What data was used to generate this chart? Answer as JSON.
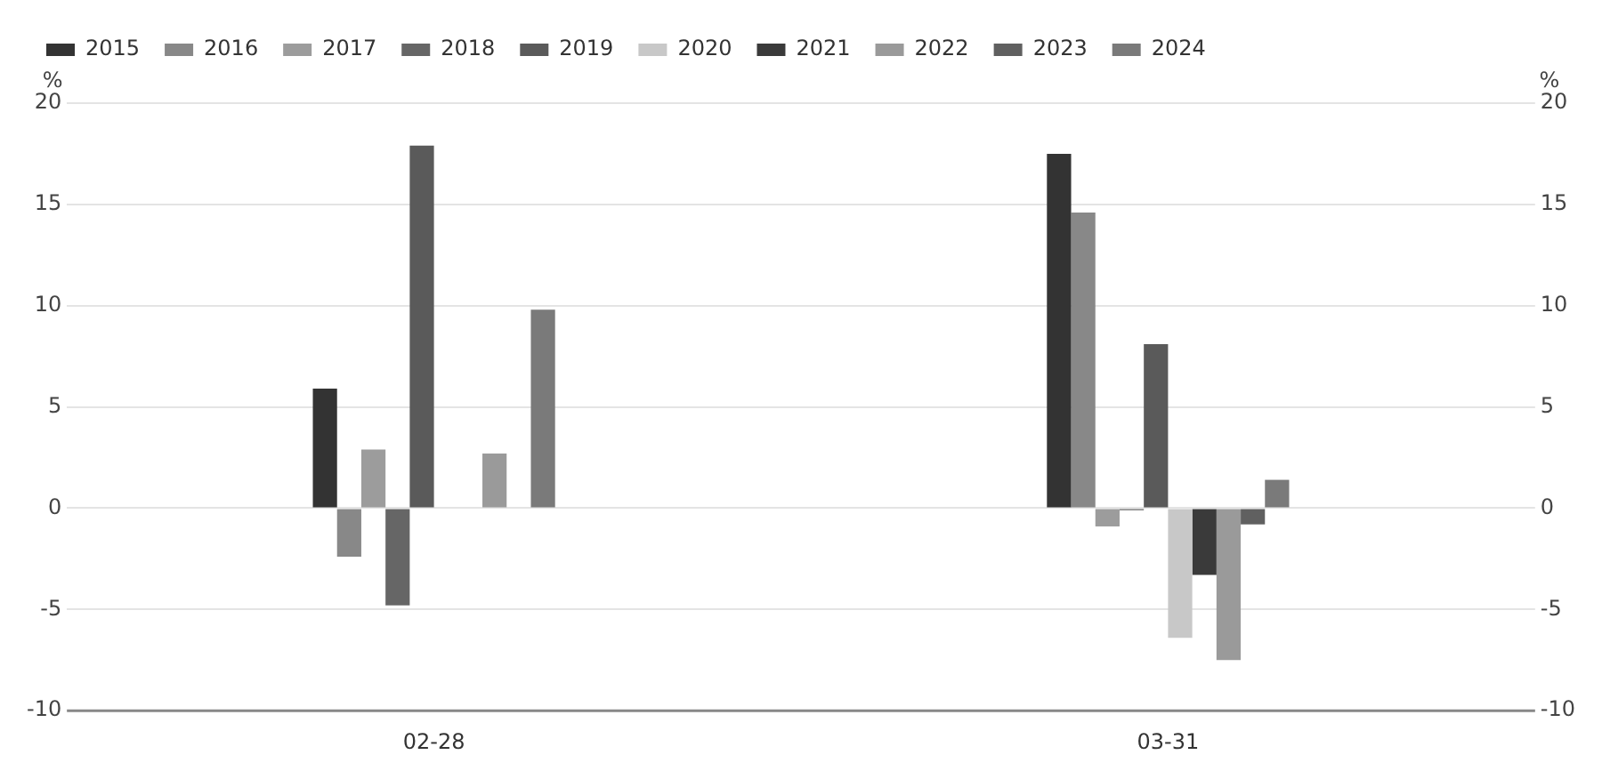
{
  "chart_data": {
    "type": "bar",
    "categories": [
      "02-28",
      "03-31"
    ],
    "series": [
      {
        "name": "2015",
        "color": "#333333",
        "values": [
          5.9,
          17.5
        ]
      },
      {
        "name": "2016",
        "color": "#888888",
        "values": [
          -2.4,
          14.6
        ]
      },
      {
        "name": "2017",
        "color": "#9c9c9c",
        "values": [
          2.9,
          -0.9
        ]
      },
      {
        "name": "2018",
        "color": "#666666",
        "values": [
          -4.8,
          -0.1
        ]
      },
      {
        "name": "2019",
        "color": "#5a5a5a",
        "values": [
          17.9,
          8.1
        ]
      },
      {
        "name": "2020",
        "color": "#c8c8c8",
        "values": [
          0,
          -6.4
        ]
      },
      {
        "name": "2021",
        "color": "#3a3a3a",
        "values": [
          0,
          -3.3
        ]
      },
      {
        "name": "2022",
        "color": "#9a9a9a",
        "values": [
          2.7,
          -7.5
        ]
      },
      {
        "name": "2023",
        "color": "#606060",
        "values": [
          0,
          -0.8
        ]
      },
      {
        "name": "2024",
        "color": "#7a7a7a",
        "values": [
          9.8,
          1.4
        ]
      }
    ],
    "ylabel": "%",
    "y2label": "%",
    "ylim": [
      -10,
      20
    ],
    "yticks": [
      -10,
      -5,
      0,
      5,
      10,
      15,
      20
    ],
    "y2lim": [
      -10,
      20
    ],
    "y2ticks": [
      -10,
      -5,
      0,
      5,
      10,
      15,
      20
    ],
    "grid": "y",
    "legend": "top left"
  }
}
